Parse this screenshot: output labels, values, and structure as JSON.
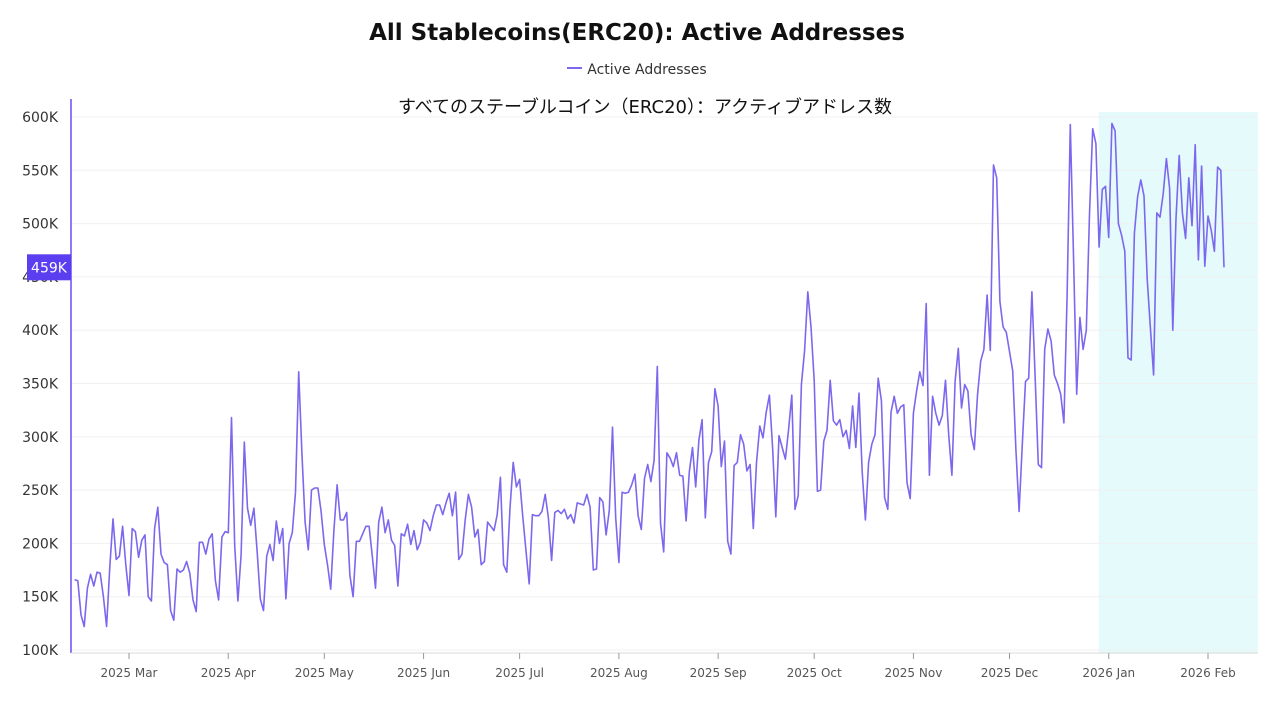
{
  "colors": {
    "line": "#7b68ee",
    "axis": "#6a4df5",
    "highlight": "#e4fafb",
    "marker_bg": "#5a3ef0",
    "grid": "#f0f0f0"
  },
  "chart_data": {
    "type": "line",
    "title": "All Stablecoins(ERC20): Active Addresses",
    "subtitle": "すべてのステーブルコイン（ERC20）：アクティブアドレス数",
    "legend": [
      "Active Addresses"
    ],
    "legend_position": "top-center",
    "series": [
      {
        "name": "Active Addresses",
        "x_start": "2025-02-12",
        "interval": "daily",
        "values": [
          166000,
          165000,
          133000,
          122000,
          158000,
          171000,
          160000,
          173000,
          172000,
          150000,
          122000,
          178000,
          223000,
          185000,
          188000,
          216000,
          180000,
          151000,
          214000,
          211000,
          187000,
          203000,
          208000,
          150000,
          146000,
          214000,
          234000,
          190000,
          182000,
          180000,
          137000,
          128000,
          176000,
          173000,
          175000,
          183000,
          172000,
          147000,
          136000,
          201000,
          201000,
          190000,
          204000,
          209000,
          165000,
          147000,
          206000,
          211000,
          210000,
          318000,
          198000,
          146000,
          189000,
          295000,
          233000,
          217000,
          233000,
          193000,
          148000,
          137000,
          188000,
          199000,
          184000,
          221000,
          200000,
          214000,
          148000,
          200000,
          210000,
          248000,
          361000,
          285000,
          220000,
          194000,
          250000,
          252000,
          252000,
          230000,
          199000,
          180000,
          157000,
          212000,
          255000,
          222000,
          222000,
          229000,
          170000,
          150000,
          202000,
          202000,
          209000,
          216000,
          216000,
          188000,
          158000,
          220000,
          234000,
          210000,
          222000,
          203000,
          198000,
          160000,
          209000,
          207000,
          218000,
          199000,
          212000,
          194000,
          201000,
          222000,
          219000,
          212000,
          226000,
          236000,
          236000,
          227000,
          238000,
          247000,
          226000,
          248000,
          185000,
          190000,
          222000,
          246000,
          234000,
          206000,
          213000,
          180000,
          183000,
          220000,
          216000,
          212000,
          227000,
          262000,
          180000,
          173000,
          233000,
          276000,
          253000,
          260000,
          225000,
          193000,
          162000,
          227000,
          226000,
          226000,
          230000,
          246000,
          224000,
          184000,
          229000,
          231000,
          228000,
          232000,
          223000,
          227000,
          219000,
          238000,
          237000,
          236000,
          246000,
          234000,
          175000,
          176000,
          243000,
          239000,
          208000,
          231000,
          309000,
          224000,
          182000,
          248000,
          247000,
          248000,
          255000,
          265000,
          226000,
          213000,
          261000,
          274000,
          258000,
          278000,
          366000,
          219000,
          192000,
          285000,
          280000,
          272000,
          285000,
          264000,
          263000,
          221000,
          267000,
          290000,
          253000,
          297000,
          316000,
          224000,
          276000,
          286000,
          345000,
          329000,
          272000,
          296000,
          202000,
          190000,
          273000,
          276000,
          302000,
          293000,
          268000,
          274000,
          214000,
          276000,
          310000,
          299000,
          323000,
          339000,
          290000,
          225000,
          301000,
          290000,
          279000,
          307000,
          339000,
          232000,
          245000,
          349000,
          381000,
          436000,
          403000,
          353000,
          249000,
          250000,
          296000,
          306000,
          353000,
          315000,
          311000,
          316000,
          300000,
          306000,
          289000,
          329000,
          290000,
          341000,
          267000,
          222000,
          276000,
          293000,
          302000,
          355000,
          334000,
          243000,
          232000,
          323000,
          338000,
          322000,
          328000,
          330000,
          257000,
          242000,
          322000,
          343000,
          361000,
          348000,
          425000,
          264000,
          338000,
          322000,
          311000,
          320000,
          353000,
          302000,
          264000,
          352000,
          383000,
          327000,
          349000,
          343000,
          302000,
          288000,
          339000,
          371000,
          382000,
          433000,
          381000,
          555000,
          543000,
          427000,
          403000,
          398000,
          380000,
          362000,
          288000,
          230000,
          293000,
          352000,
          355000,
          436000,
          357000,
          274000,
          271000,
          382000,
          401000,
          390000,
          358000,
          350000,
          340000,
          313000,
          432000,
          593000,
          470000,
          340000,
          412000,
          382000,
          400000,
          509000,
          589000,
          575000,
          478000,
          532000,
          535000,
          487000,
          594000,
          587000,
          500000,
          489000,
          474000,
          374000,
          372000,
          491000,
          525000,
          541000,
          526000,
          448000,
          402000,
          358000,
          510000,
          506000,
          528000,
          561000,
          533000,
          400000,
          505000,
          564000,
          510000,
          486000,
          543000,
          498000,
          574000,
          466000,
          554000,
          460000,
          507000,
          494000,
          474000,
          553000,
          550000,
          459000
        ]
      }
    ],
    "ylim": [
      100000,
      600000
    ],
    "y_ticks": [
      {
        "value": 100000,
        "label": "100K"
      },
      {
        "value": 150000,
        "label": "150K"
      },
      {
        "value": 200000,
        "label": "200K"
      },
      {
        "value": 250000,
        "label": "250K"
      },
      {
        "value": 300000,
        "label": "300K"
      },
      {
        "value": 350000,
        "label": "350K"
      },
      {
        "value": 400000,
        "label": "400K"
      },
      {
        "value": 450000,
        "label": "450K"
      },
      {
        "value": 500000,
        "label": "500K"
      },
      {
        "value": 550000,
        "label": "550K"
      },
      {
        "value": 600000,
        "label": "600K"
      }
    ],
    "x_ticks": [
      {
        "date": "2025-03-01",
        "label": "2025 Mar"
      },
      {
        "date": "2025-04-01",
        "label": "2025 Apr"
      },
      {
        "date": "2025-05-01",
        "label": "2025 May"
      },
      {
        "date": "2025-06-01",
        "label": "2025 Jun"
      },
      {
        "date": "2025-07-01",
        "label": "2025 Jul"
      },
      {
        "date": "2025-08-01",
        "label": "2025 Aug"
      },
      {
        "date": "2025-09-01",
        "label": "2025 Sep"
      },
      {
        "date": "2025-10-01",
        "label": "2025 Oct"
      },
      {
        "date": "2025-11-01",
        "label": "2025 Nov"
      },
      {
        "date": "2025-12-01",
        "label": "2025 Dec"
      },
      {
        "date": "2026-01-01",
        "label": "2026 Jan"
      },
      {
        "date": "2026-02-01",
        "label": "2026 Feb"
      }
    ],
    "highlight_range": [
      "2026-01-01",
      "2026-02-15"
    ],
    "current_value": {
      "value": 459000,
      "label": "459K"
    },
    "grid": true
  }
}
